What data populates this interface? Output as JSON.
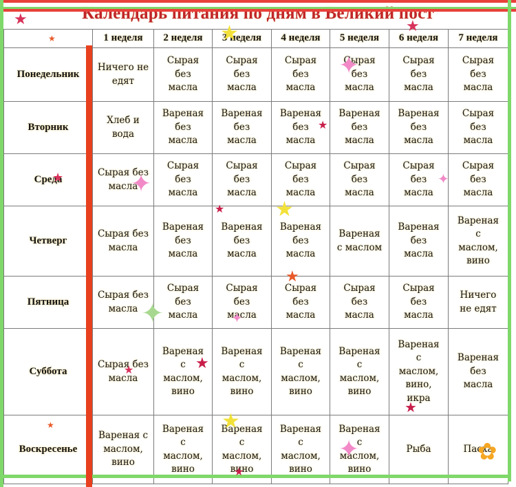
{
  "title": "Календарь питания по дням в Великий пост",
  "weeks": [
    "1 неделя",
    "2 неделя",
    "3 неделя",
    "4 неделя",
    "5 неделя",
    "6 неделя",
    "7 неделя"
  ],
  "rows": [
    {
      "day": "Понедельник",
      "cells": [
        "Ничего не\nедят",
        "Сырая\nбез\nмасла",
        "Сырая\nбез\nмасла",
        "Сырая\nбез\nмасла",
        "Сырая\nбез\nмасла",
        "Сырая\nбез\nмасла",
        "Сырая\nбез\nмасла"
      ]
    },
    {
      "day": "Вторник",
      "cells": [
        "Хлеб и\nвода",
        "Вареная\nбез\nмасла",
        "Вареная\nбез\nмасла",
        "Вареная\nбез\nмасла",
        "Вареная\nбез\nмасла",
        "Вареная\nбез\nмасла",
        "Сырая\nбез\nмасла"
      ]
    },
    {
      "day": "Среда",
      "cells": [
        "Сырая без\nмасла",
        "Сырая\nбез\nмасла",
        "Сырая\nбез\nмасла",
        "Сырая\nбез\nмасла",
        "Сырая\nбез\nмасла",
        "Сырая\nбез\nмасла",
        "Сырая\nбез\nмасла"
      ]
    },
    {
      "day": "Четверг",
      "cells": [
        "Сырая без\nмасла",
        "Вареная\nбез\nмасла",
        "Вареная\nбез\nмасла",
        "Вареная\nбез\nмасла",
        "Вареная\nс маслом",
        "Вареная\nбез\nмасла",
        "Вареная\nс\nмаслом,\nвино"
      ]
    },
    {
      "day": "Пятница",
      "cells": [
        "Сырая без\nмасла",
        "Сырая\nбез\nмасла",
        "Сырая\nбез\nмасла",
        "Сырая\nбез\nмасла",
        "Сырая\nбез\nмасла",
        "Сырая\nбез\nмасла",
        "Ничего\nне едят"
      ]
    },
    {
      "day": "Суббота",
      "cells": [
        "Сырая без\nмасла",
        "Вареная\nс\nмаслом,\nвино",
        "Вареная\nс\nмаслом,\nвино",
        "Вареная\nс\nмаслом,\nвино",
        "Вареная\nс\nмаслом,\nвино",
        "Вареная\nс\nмаслом,\nвино,\nикра",
        "Вареная\nбез\nмасла"
      ]
    },
    {
      "day": "Воскресенье",
      "cells": [
        "Вареная с\nмаслом,\nвино",
        "Вареная\nс\nмаслом,\nвино",
        "Вареная\nс\nмаслом,\nвино",
        "Вареная\nс\nмаслом,\nвино",
        "Вареная\nс\nмаслом,\nвино",
        "Рыба",
        "Пасха"
      ]
    }
  ],
  "colors": {
    "title": "#c0262a",
    "frame_red": "#e8401e",
    "frame_green": "#7fd86a",
    "grid": "#7a7a7a"
  }
}
